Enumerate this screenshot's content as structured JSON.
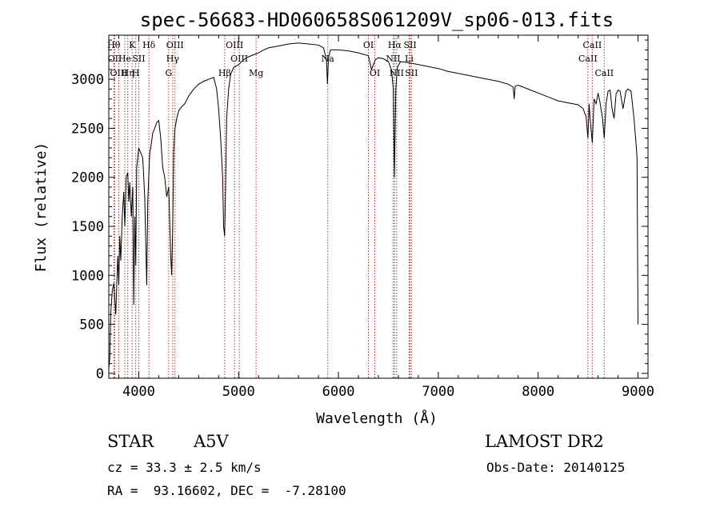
{
  "chart_data": {
    "type": "line",
    "title": "spec-56683-HD060658S061209V_sp06-013.fits",
    "xlabel": "Wavelength (Å)",
    "ylabel": "Flux (relative)",
    "xlim": [
      3700,
      9100
    ],
    "ylim": [
      -50,
      3450
    ],
    "xticks": [
      {
        "value": 4000,
        "label": "4000"
      },
      {
        "value": 5000,
        "label": "5000"
      },
      {
        "value": 6000,
        "label": "6000"
      },
      {
        "value": 7000,
        "label": "7000"
      },
      {
        "value": 8000,
        "label": "8000"
      },
      {
        "value": 9000,
        "label": "9000"
      }
    ],
    "yticks": [
      {
        "value": 0,
        "label": "0"
      },
      {
        "value": 500,
        "label": "500"
      },
      {
        "value": 1000,
        "label": "1000"
      },
      {
        "value": 1500,
        "label": "1500"
      },
      {
        "value": 2000,
        "label": "2000"
      },
      {
        "value": 2500,
        "label": "2500"
      },
      {
        "value": 3000,
        "label": "3000"
      }
    ],
    "grid": false,
    "series": [
      {
        "x": [
          3700,
          3710,
          3720,
          3735,
          3750,
          3770,
          3790,
          3800,
          3810,
          3820,
          3835,
          3850,
          3860,
          3875,
          3890,
          3900,
          3910,
          3925,
          3940,
          3950,
          3960,
          3970,
          3980,
          4000,
          4020,
          4040,
          4060,
          4080,
          4090,
          4100,
          4110,
          4120,
          4140,
          4160,
          4180,
          4200,
          4220,
          4240,
          4260,
          4280,
          4300,
          4320,
          4330,
          4340,
          4350,
          4360,
          4380,
          4400,
          4430,
          4460,
          4500,
          4550,
          4600,
          4650,
          4700,
          4750,
          4780,
          4800,
          4820,
          4840,
          4850,
          4860,
          4870,
          4880,
          4900,
          4920,
          4950,
          5000,
          5050,
          5100,
          5150,
          5200,
          5250,
          5300,
          5400,
          5500,
          5600,
          5700,
          5800,
          5850,
          5880,
          5890,
          5900,
          5920,
          6000,
          6100,
          6200,
          6300,
          6330,
          6370,
          6400,
          6450,
          6500,
          6530,
          6550,
          6560,
          6565,
          6575,
          6590,
          6620,
          6700,
          6800,
          6900,
          7000,
          7100,
          7200,
          7300,
          7400,
          7500,
          7600,
          7700,
          7750,
          7760,
          7770,
          7800,
          7900,
          8000,
          8100,
          8200,
          8300,
          8400,
          8450,
          8480,
          8498,
          8510,
          8520,
          8542,
          8560,
          8580,
          8600,
          8620,
          8645,
          8662,
          8680,
          8700,
          8720,
          8740,
          8760,
          8780,
          8800,
          8820,
          8850,
          8880,
          8900,
          8930,
          8960,
          8980,
          8990,
          9000
        ],
        "y": [
          50,
          150,
          620,
          850,
          920,
          600,
          1200,
          900,
          1400,
          1150,
          1600,
          1850,
          1500,
          2000,
          2050,
          1750,
          1950,
          1600,
          1900,
          700,
          1600,
          1100,
          2100,
          2300,
          2250,
          2200,
          1800,
          900,
          1750,
          2000,
          2250,
          2300,
          2450,
          2500,
          2560,
          2580,
          2400,
          2100,
          2000,
          1800,
          1900,
          1200,
          1000,
          1500,
          2250,
          2480,
          2600,
          2680,
          2720,
          2750,
          2830,
          2900,
          2950,
          2980,
          3000,
          3020,
          2900,
          2700,
          2400,
          2000,
          1500,
          1400,
          1900,
          2600,
          2900,
          3050,
          3120,
          3150,
          3200,
          3230,
          3250,
          3270,
          3300,
          3320,
          3340,
          3360,
          3370,
          3360,
          3350,
          3320,
          3200,
          2950,
          3220,
          3300,
          3300,
          3290,
          3270,
          3240,
          3100,
          3200,
          3220,
          3210,
          3180,
          3100,
          2900,
          2000,
          2300,
          2900,
          3120,
          3180,
          3170,
          3150,
          3130,
          3110,
          3080,
          3060,
          3040,
          3020,
          3000,
          2980,
          2950,
          2920,
          2800,
          2930,
          2940,
          2900,
          2860,
          2820,
          2780,
          2760,
          2740,
          2700,
          2620,
          2400,
          2750,
          2600,
          2350,
          2800,
          2750,
          2860,
          2760,
          2600,
          2400,
          2750,
          2880,
          2890,
          2700,
          2600,
          2850,
          2890,
          2880,
          2700,
          2880,
          2900,
          2880,
          2600,
          2350,
          2200,
          500
        ]
      }
    ],
    "lines": [
      {
        "wl": 3750,
        "label": "Hθ",
        "row": 1
      },
      {
        "wl": 3760,
        "label": "OII",
        "row": 2
      },
      {
        "wl": 3800,
        "label": "OIII",
        "row": 3
      },
      {
        "wl": 3860,
        "label": "He",
        "row": 2
      },
      {
        "wl": 3890,
        "label": "Hη",
        "row": 3
      },
      {
        "wl": 3934,
        "label": "K",
        "row": 1
      },
      {
        "wl": 3970,
        "label": "H",
        "row": 3
      },
      {
        "wl": 4000,
        "label": "SII",
        "row": 2
      },
      {
        "wl": 4102,
        "label": "Hδ",
        "row": 1
      },
      {
        "wl": 4300,
        "label": "G",
        "row": 3
      },
      {
        "wl": 4340,
        "label": "Hγ",
        "row": 2
      },
      {
        "wl": 4363,
        "label": "OIII",
        "row": 1
      },
      {
        "wl": 4861,
        "label": "Hβ",
        "row": 3
      },
      {
        "wl": 4959,
        "label": "OIII",
        "row": 1
      },
      {
        "wl": 5007,
        "label": "OIII",
        "row": 2
      },
      {
        "wl": 5175,
        "label": "Mg",
        "row": 3
      },
      {
        "wl": 5893,
        "label": "Na",
        "row": 2
      },
      {
        "wl": 6300,
        "label": "OI",
        "row": 1
      },
      {
        "wl": 6364,
        "label": "OI",
        "row": 3
      },
      {
        "wl": 6548,
        "label": "NII",
        "row": 2
      },
      {
        "wl": 6563,
        "label": "Hα",
        "row": 1
      },
      {
        "wl": 6583,
        "label": "NII",
        "row": 3
      },
      {
        "wl": 6708,
        "label": "Li",
        "row": 2
      },
      {
        "wl": 6717,
        "label": "SII",
        "row": 1
      },
      {
        "wl": 6731,
        "label": "SII",
        "row": 3
      },
      {
        "wl": 8498,
        "label": "CaII",
        "row": 2
      },
      {
        "wl": 8542,
        "label": "CaII",
        "row": 1
      },
      {
        "wl": 8662,
        "label": "CaII",
        "row": 3
      }
    ]
  },
  "info": {
    "class": "STAR",
    "subclass": "A5V",
    "survey": "LAMOST DR2",
    "cz": "cz = 33.3 ± 2.5 km/s",
    "obs_date": "Obs-Date: 20140125",
    "radec": "RA =  93.16602, DEC =  -7.28100"
  }
}
